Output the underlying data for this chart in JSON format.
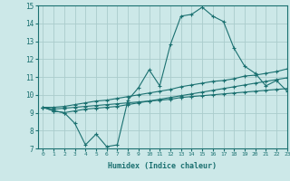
{
  "xlabel": "Humidex (Indice chaleur)",
  "xlim": [
    -0.5,
    23
  ],
  "ylim": [
    7,
    15
  ],
  "xticks": [
    0,
    1,
    2,
    3,
    4,
    5,
    6,
    7,
    8,
    9,
    10,
    11,
    12,
    13,
    14,
    15,
    16,
    17,
    18,
    19,
    20,
    21,
    22,
    23
  ],
  "yticks": [
    7,
    8,
    9,
    10,
    11,
    12,
    13,
    14,
    15
  ],
  "background_color": "#cce8e8",
  "grid_color": "#aacccc",
  "line_color": "#1a7070",
  "hours": [
    0,
    1,
    2,
    3,
    4,
    5,
    6,
    7,
    8,
    9,
    10,
    11,
    12,
    13,
    14,
    15,
    16,
    17,
    18,
    19,
    20,
    21,
    22,
    23
  ],
  "line_zigzag": [
    9.3,
    9.1,
    9.0,
    8.4,
    7.2,
    7.8,
    7.1,
    7.2,
    9.7,
    10.4,
    11.4,
    10.5,
    12.8,
    14.4,
    14.5,
    14.9,
    14.4,
    14.1,
    12.6,
    11.6,
    11.2,
    10.5,
    10.8,
    10.2
  ],
  "line_straight1": [
    9.3,
    9.2,
    9.25,
    9.3,
    9.35,
    9.4,
    9.45,
    9.5,
    9.55,
    9.6,
    9.65,
    9.7,
    9.75,
    9.85,
    9.9,
    9.95,
    10.0,
    10.05,
    10.1,
    10.15,
    10.2,
    10.25,
    10.3,
    10.35
  ],
  "line_straight2": [
    9.3,
    9.3,
    9.35,
    9.45,
    9.55,
    9.65,
    9.7,
    9.8,
    9.9,
    10.0,
    10.1,
    10.2,
    10.3,
    10.45,
    10.55,
    10.65,
    10.75,
    10.8,
    10.9,
    11.05,
    11.1,
    11.2,
    11.3,
    11.45
  ],
  "line_straight3": [
    9.3,
    9.1,
    9.0,
    9.1,
    9.2,
    9.25,
    9.3,
    9.35,
    9.45,
    9.55,
    9.65,
    9.75,
    9.85,
    9.95,
    10.05,
    10.15,
    10.25,
    10.35,
    10.45,
    10.55,
    10.65,
    10.75,
    10.85,
    10.95
  ]
}
